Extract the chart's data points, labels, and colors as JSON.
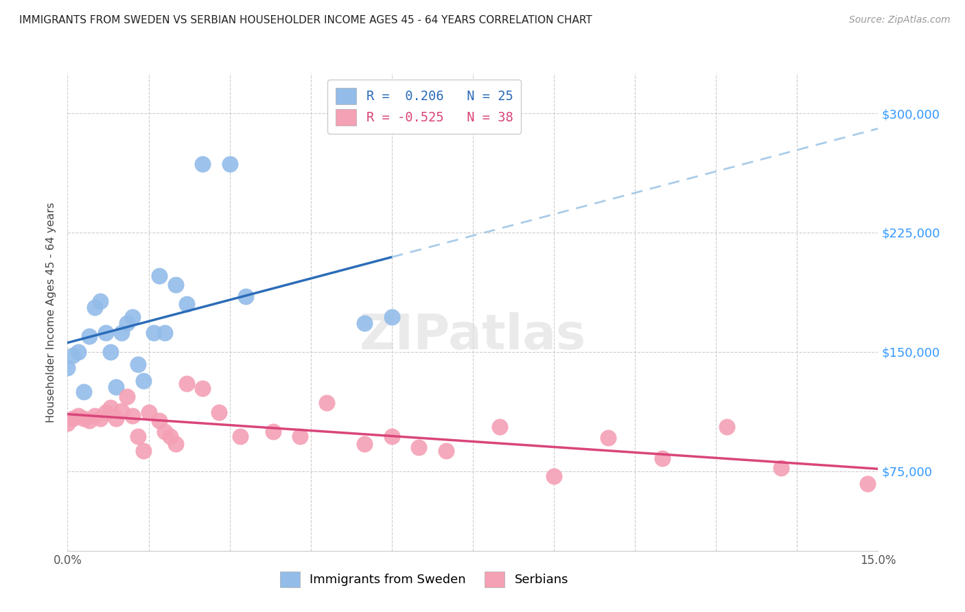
{
  "title": "IMMIGRANTS FROM SWEDEN VS SERBIAN HOUSEHOLDER INCOME AGES 45 - 64 YEARS CORRELATION CHART",
  "source": "Source: ZipAtlas.com",
  "ylabel": "Householder Income Ages 45 - 64 years",
  "x_min": 0.0,
  "x_max": 0.15,
  "y_min": 25000,
  "y_max": 325000,
  "yticks": [
    75000,
    150000,
    225000,
    300000
  ],
  "ytick_labels": [
    "$75,000",
    "$150,000",
    "$225,000",
    "$300,000"
  ],
  "r_sweden": 0.206,
  "n_sweden": 25,
  "r_serbian": -0.525,
  "n_serbian": 38,
  "legend_label_sweden": "Immigrants from Sweden",
  "legend_label_serbian": "Serbians",
  "color_sweden": "#93BCE9",
  "color_swedish_line": "#2B6CB8",
  "color_serbian": "#F4A0B5",
  "color_serbian_line": "#D9457A",
  "color_dashed": "#AACCE8",
  "background": "#FFFFFF",
  "sweden_x": [
    0.0,
    0.001,
    0.002,
    0.003,
    0.004,
    0.005,
    0.006,
    0.007,
    0.008,
    0.009,
    0.01,
    0.011,
    0.012,
    0.013,
    0.014,
    0.016,
    0.017,
    0.018,
    0.02,
    0.022,
    0.025,
    0.03,
    0.033,
    0.055,
    0.06
  ],
  "sweden_y": [
    140000,
    148000,
    150000,
    125000,
    160000,
    178000,
    182000,
    162000,
    150000,
    128000,
    162000,
    168000,
    172000,
    142000,
    132000,
    162000,
    198000,
    162000,
    192000,
    180000,
    268000,
    268000,
    185000,
    168000,
    172000
  ],
  "serbian_x": [
    0.0,
    0.001,
    0.002,
    0.003,
    0.004,
    0.005,
    0.006,
    0.007,
    0.008,
    0.009,
    0.01,
    0.011,
    0.012,
    0.013,
    0.014,
    0.015,
    0.017,
    0.018,
    0.019,
    0.02,
    0.022,
    0.025,
    0.028,
    0.032,
    0.038,
    0.043,
    0.048,
    0.055,
    0.06,
    0.065,
    0.07,
    0.08,
    0.09,
    0.1,
    0.11,
    0.122,
    0.132,
    0.148
  ],
  "serbian_y": [
    105000,
    108000,
    110000,
    108000,
    107000,
    110000,
    108000,
    112000,
    115000,
    108000,
    113000,
    122000,
    110000,
    97000,
    88000,
    112000,
    107000,
    100000,
    97000,
    92000,
    130000,
    127000,
    112000,
    97000,
    100000,
    97000,
    118000,
    92000,
    97000,
    90000,
    88000,
    103000,
    72000,
    96000,
    83000,
    103000,
    77000,
    67000
  ]
}
